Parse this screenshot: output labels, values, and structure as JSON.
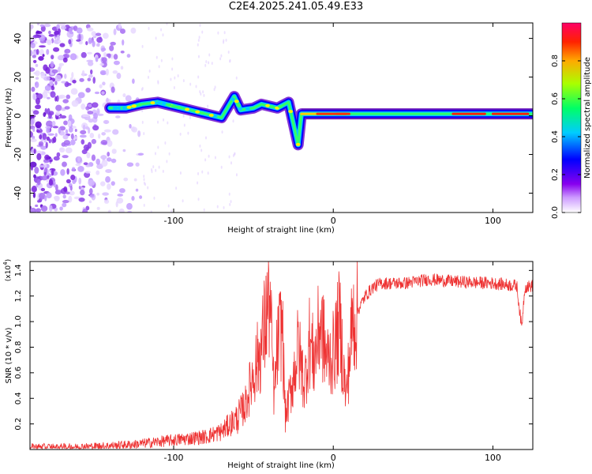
{
  "title": "C2E4.2025.241.05.49.E33",
  "chart_data": [
    {
      "type": "heatmap",
      "title": "C2E4.2025.241.05.49.E33",
      "xlabel": "Height of straight line (km)",
      "ylabel": "Frequency (Hz)",
      "xlim": [
        -190,
        125
      ],
      "ylim": [
        -50,
        48
      ],
      "xticks": [
        -100,
        0,
        100
      ],
      "yticks": [
        -40,
        -20,
        0,
        20,
        40
      ],
      "colorbar": {
        "label": "Normalized spectral amplitude",
        "range": [
          0,
          1
        ],
        "ticks": [
          "0.0",
          "0.2",
          "0.4",
          "0.6",
          "0.8"
        ],
        "colormap": "rainbow (white-violet-blue-cyan-green-yellow-red)"
      },
      "trace": {
        "description": "narrowband signal near 0 Hz; scattered noise for x < -140 km",
        "points": [
          [
            -140,
            4
          ],
          [
            -130,
            4
          ],
          [
            -120,
            6
          ],
          [
            -110,
            7
          ],
          [
            -100,
            5
          ],
          [
            -90,
            3
          ],
          [
            -80,
            1
          ],
          [
            -70,
            -1
          ],
          [
            -62,
            10
          ],
          [
            -58,
            3
          ],
          [
            -50,
            4
          ],
          [
            -45,
            6
          ],
          [
            -35,
            4
          ],
          [
            -28,
            7
          ],
          [
            -22,
            -15
          ],
          [
            -20,
            1
          ],
          [
            0,
            1
          ],
          [
            20,
            1
          ],
          [
            60,
            1
          ],
          [
            100,
            1
          ],
          [
            125,
            1
          ]
        ]
      }
    },
    {
      "type": "line",
      "xlabel": "Height of straight line (km)",
      "ylabel": "SNR (10 * v/v)",
      "yscale_label": "(x10",
      "yscale_exp": "4",
      "yscale_close": ")",
      "xlim": [
        -190,
        125
      ],
      "ylim": [
        0,
        1.47
      ],
      "xticks": [
        -100,
        0,
        100
      ],
      "yticks": [
        "0.2",
        "0.4",
        "0.6",
        "0.8",
        "1.0",
        "1.2",
        "1.4"
      ],
      "color": "#ee3333",
      "series": [
        {
          "name": "SNR",
          "x": [
            -190,
            -160,
            -140,
            -125,
            -110,
            -95,
            -80,
            -70,
            -60,
            -55,
            -50,
            -45,
            -40,
            -37,
            -35,
            -32,
            -30,
            -26,
            -22,
            -18,
            -15,
            -12,
            -8,
            -4,
            0,
            4,
            8,
            12,
            16,
            20,
            25,
            30,
            35,
            45,
            60,
            80,
            100,
            115,
            118,
            120,
            125
          ],
          "y": [
            0.02,
            0.02,
            0.03,
            0.04,
            0.06,
            0.08,
            0.1,
            0.14,
            0.25,
            0.35,
            0.6,
            0.8,
            1.2,
            0.4,
            0.8,
            1.0,
            0.25,
            0.5,
            0.8,
            0.5,
            0.85,
            0.7,
            1.0,
            0.7,
            0.75,
            1.0,
            0.4,
            1.0,
            1.1,
            1.2,
            1.27,
            1.3,
            1.3,
            1.3,
            1.33,
            1.31,
            1.3,
            1.28,
            0.95,
            1.27,
            1.28
          ]
        }
      ]
    }
  ]
}
